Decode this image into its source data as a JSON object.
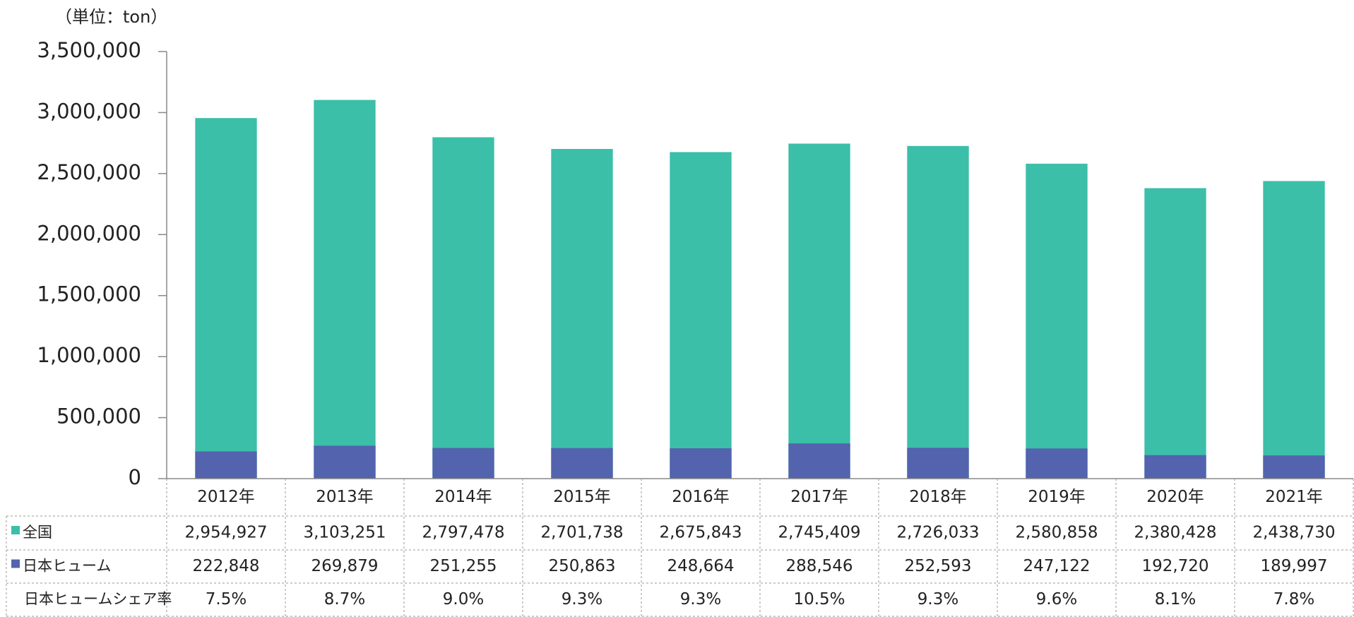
{
  "chart_data": {
    "type": "bar",
    "unit_label": "（単位：ton）",
    "categories": [
      "2012年",
      "2013年",
      "2014年",
      "2015年",
      "2016年",
      "2017年",
      "2018年",
      "2019年",
      "2020年",
      "2021年"
    ],
    "series": [
      {
        "name": "全国",
        "color": "#3bbfa9",
        "values": [
          2954927,
          3103251,
          2797478,
          2701738,
          2675843,
          2745409,
          2726033,
          2580858,
          2380428,
          2438730
        ],
        "value_labels": [
          "2,954,927",
          "3,103,251",
          "2,797,478",
          "2,701,738",
          "2,675,843",
          "2,745,409",
          "2,726,033",
          "2,580,858",
          "2,380,428",
          "2,438,730"
        ]
      },
      {
        "name": "日本ヒューム",
        "color": "#5363ae",
        "values": [
          222848,
          269879,
          251255,
          250863,
          248664,
          288546,
          252593,
          247122,
          192720,
          189997
        ],
        "value_labels": [
          "222,848",
          "269,879",
          "251,255",
          "250,863",
          "248,664",
          "288,546",
          "252,593",
          "247,122",
          "192,720",
          "189,997"
        ]
      }
    ],
    "share": {
      "name": "日本ヒュームシェア率",
      "values": [
        7.5,
        8.7,
        9.0,
        9.3,
        9.3,
        10.5,
        9.3,
        9.6,
        8.1,
        7.8
      ],
      "value_labels": [
        "7.5%",
        "8.7%",
        "9.0%",
        "9.3%",
        "9.3%",
        "10.5%",
        "9.3%",
        "9.6%",
        "8.1%",
        "7.8%"
      ]
    },
    "ylim": [
      0,
      3500000
    ],
    "yticks": [
      0,
      {
        "value": 500000,
        "label": "500,000"
      },
      {
        "value": 1000000,
        "label": "1,000,000"
      },
      {
        "value": 1500000,
        "label": "1,500,000"
      },
      {
        "value": 2000000,
        "label": "2,000,000"
      },
      {
        "value": 2500000,
        "label": "2,500,000"
      },
      {
        "value": 3000000,
        "label": "3,000,000"
      },
      {
        "value": 3500000,
        "label": "3,500,000"
      }
    ]
  }
}
